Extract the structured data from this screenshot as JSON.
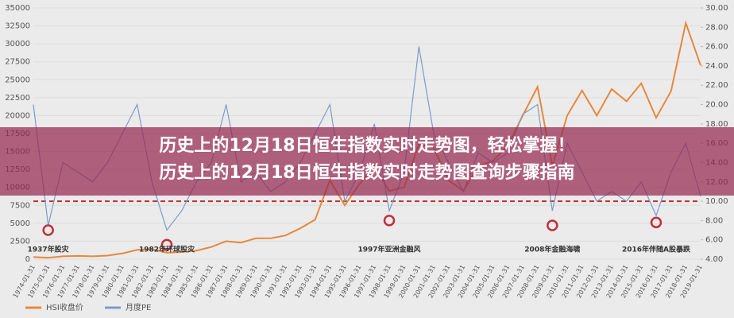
{
  "chart_data": {
    "type": "line",
    "title": "历史上的12月18日恒生指数实时走势图，轻松掌握！历史上的12月18日恒生指数实时走势图查询步骤指南",
    "categories": [
      "1974-01-31",
      "1975-01-31",
      "1976-01-31",
      "1977-01-31",
      "1978-01-31",
      "1979-01-31",
      "1980-01-31",
      "1981-01-31",
      "1982-01-31",
      "1983-01-31",
      "1984-01-31",
      "1985-01-31",
      "1986-01-31",
      "1987-01-31",
      "1988-01-31",
      "1989-01-31",
      "1990-01-31",
      "1991-01-31",
      "1992-01-31",
      "1993-01-31",
      "1994-01-31",
      "1995-01-31",
      "1996-01-31",
      "1997-01-31",
      "1998-01-31",
      "1999-01-31",
      "2000-01-31",
      "2001-01-31",
      "2002-01-31",
      "2003-01-31",
      "2004-01-31",
      "2005-01-31",
      "2006-01-31",
      "2007-01-31",
      "2008-01-31",
      "2009-01-31",
      "2010-01-31",
      "2011-01-31",
      "2012-01-31",
      "2013-01-31",
      "2014-01-31",
      "2015-01-31",
      "2016-01-31",
      "2017-01-31",
      "2018-01-31",
      "2019-01-31"
    ],
    "series": [
      {
        "name": "HSI收盘价",
        "color": "#e8883a",
        "axis": "y",
        "values": [
          300,
          200,
          400,
          450,
          400,
          500,
          800,
          1300,
          1400,
          900,
          1000,
          1200,
          1700,
          2500,
          2300,
          2900,
          2900,
          3300,
          4300,
          5500,
          11000,
          7500,
          10500,
          13000,
          9500,
          10000,
          16000,
          15500,
          11000,
          9500,
          13000,
          13700,
          15800,
          20000,
          24000,
          13000,
          20000,
          23500,
          20000,
          23700,
          22000,
          24500,
          19700,
          23400,
          32900,
          27000
        ]
      },
      {
        "name": "月度PE",
        "color": "#7a9cc8",
        "axis": "y2",
        "values": [
          20,
          7.5,
          14,
          13,
          12,
          14,
          17,
          20,
          12,
          7,
          9,
          12,
          14,
          20,
          12,
          13,
          11,
          12,
          14,
          17,
          20,
          10,
          13,
          18,
          9,
          13,
          26,
          17,
          14,
          11,
          15,
          14,
          15,
          19,
          20,
          9,
          16,
          13,
          10,
          11,
          10,
          12,
          8.5,
          13,
          16,
          10.5
        ]
      }
    ],
    "ylim": [
      0,
      35000
    ],
    "yticks": [
      0,
      2500,
      5000,
      7500,
      10000,
      12500,
      15000,
      17500,
      20000,
      22500,
      25000,
      27500,
      30000,
      32500,
      35000
    ],
    "y2lim": [
      4,
      30
    ],
    "y2ticks": [
      {
        "value": 4,
        "label": "4.00"
      },
      {
        "value": 6,
        "label": "6.00"
      },
      {
        "value": 8,
        "label": "8.00"
      },
      {
        "value": 10,
        "label": "10.00"
      },
      {
        "value": 12,
        "label": "12.00"
      },
      {
        "value": 14,
        "label": "14.00"
      },
      {
        "value": 16,
        "label": "16.00"
      },
      {
        "value": 18,
        "label": "18.00"
      },
      {
        "value": 20,
        "label": "20.00"
      },
      {
        "value": 22,
        "label": "22.00"
      },
      {
        "value": 24,
        "label": "24.00"
      },
      {
        "value": 26,
        "label": "26.00"
      },
      {
        "value": 28,
        "label": "28.00"
      },
      {
        "value": 30,
        "label": "30.00"
      }
    ],
    "reference_line": {
      "value": 10,
      "axis": "y2",
      "color": "#c0303a"
    },
    "annotations": [
      {
        "text": "1937年股灾",
        "category": 1,
        "value": 7
      },
      {
        "text": "1982年环球股灾",
        "category": 9,
        "value": 5.5
      },
      {
        "text": "1997年亚洲金融风",
        "category": 24,
        "value": 8
      },
      {
        "text": "2008年金融海啸",
        "category": 35,
        "value": 7.5
      },
      {
        "text": "2016年伴随A股暴跌",
        "category": 42,
        "value": 7.8
      }
    ],
    "grid": true,
    "legend": "bottom-left"
  }
}
